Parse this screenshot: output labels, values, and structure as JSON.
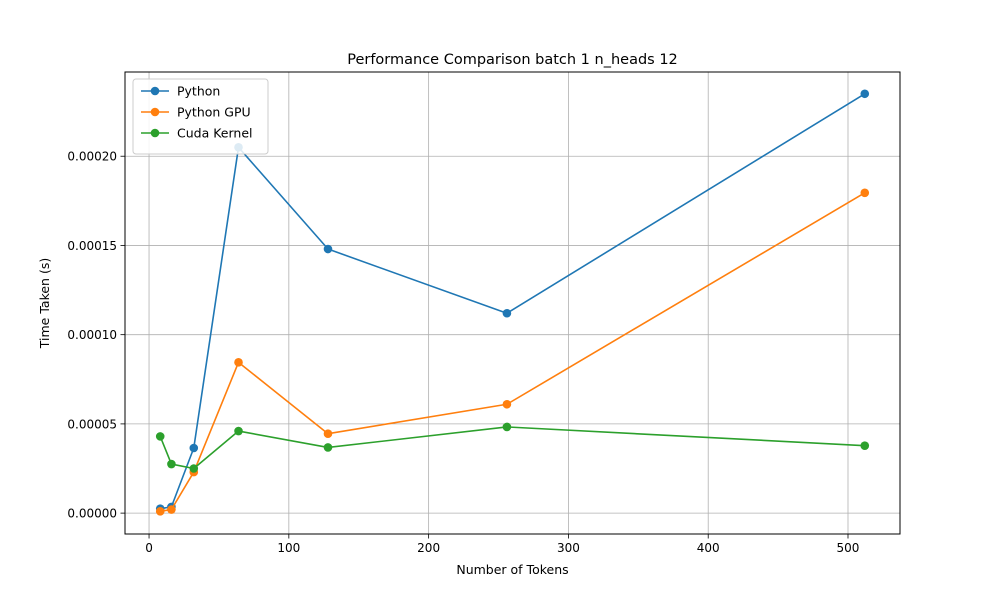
{
  "chart_data": {
    "type": "line",
    "title": "Performance Comparison batch 1 n_heads 12",
    "xlabel": "Number of Tokens",
    "ylabel": "Time Taken (s)",
    "x": [
      8,
      16,
      32,
      64,
      128,
      256,
      512
    ],
    "xlim": [
      -17.2,
      537.2
    ],
    "ylim": [
      -1.17e-05,
      0.0002472
    ],
    "xticks": [
      0,
      100,
      200,
      300,
      400,
      500
    ],
    "xtick_labels": [
      "0",
      "100",
      "200",
      "300",
      "400",
      "500"
    ],
    "yticks": [
      0,
      5e-05,
      0.0001,
      0.00015,
      0.0002
    ],
    "ytick_labels": [
      "0.00000",
      "0.00005",
      "0.00010",
      "0.00015",
      "0.00020"
    ],
    "grid": true,
    "legend_position": "top-left",
    "series": [
      {
        "name": "Python",
        "color": "#1f77b4",
        "values": [
          2.5e-06,
          3.5e-06,
          3.65e-05,
          0.000205,
          0.000148,
          0.000112,
          0.000235
        ]
      },
      {
        "name": "Python GPU",
        "color": "#ff7f0e",
        "values": [
          1e-06,
          2e-06,
          2.3e-05,
          8.45e-05,
          4.45e-05,
          6.1e-05,
          0.0001795
        ]
      },
      {
        "name": "Cuda Kernel",
        "color": "#2ca02c",
        "values": [
          4.3e-05,
          2.75e-05,
          2.5e-05,
          4.6e-05,
          3.68e-05,
          4.83e-05,
          3.78e-05
        ]
      }
    ]
  }
}
